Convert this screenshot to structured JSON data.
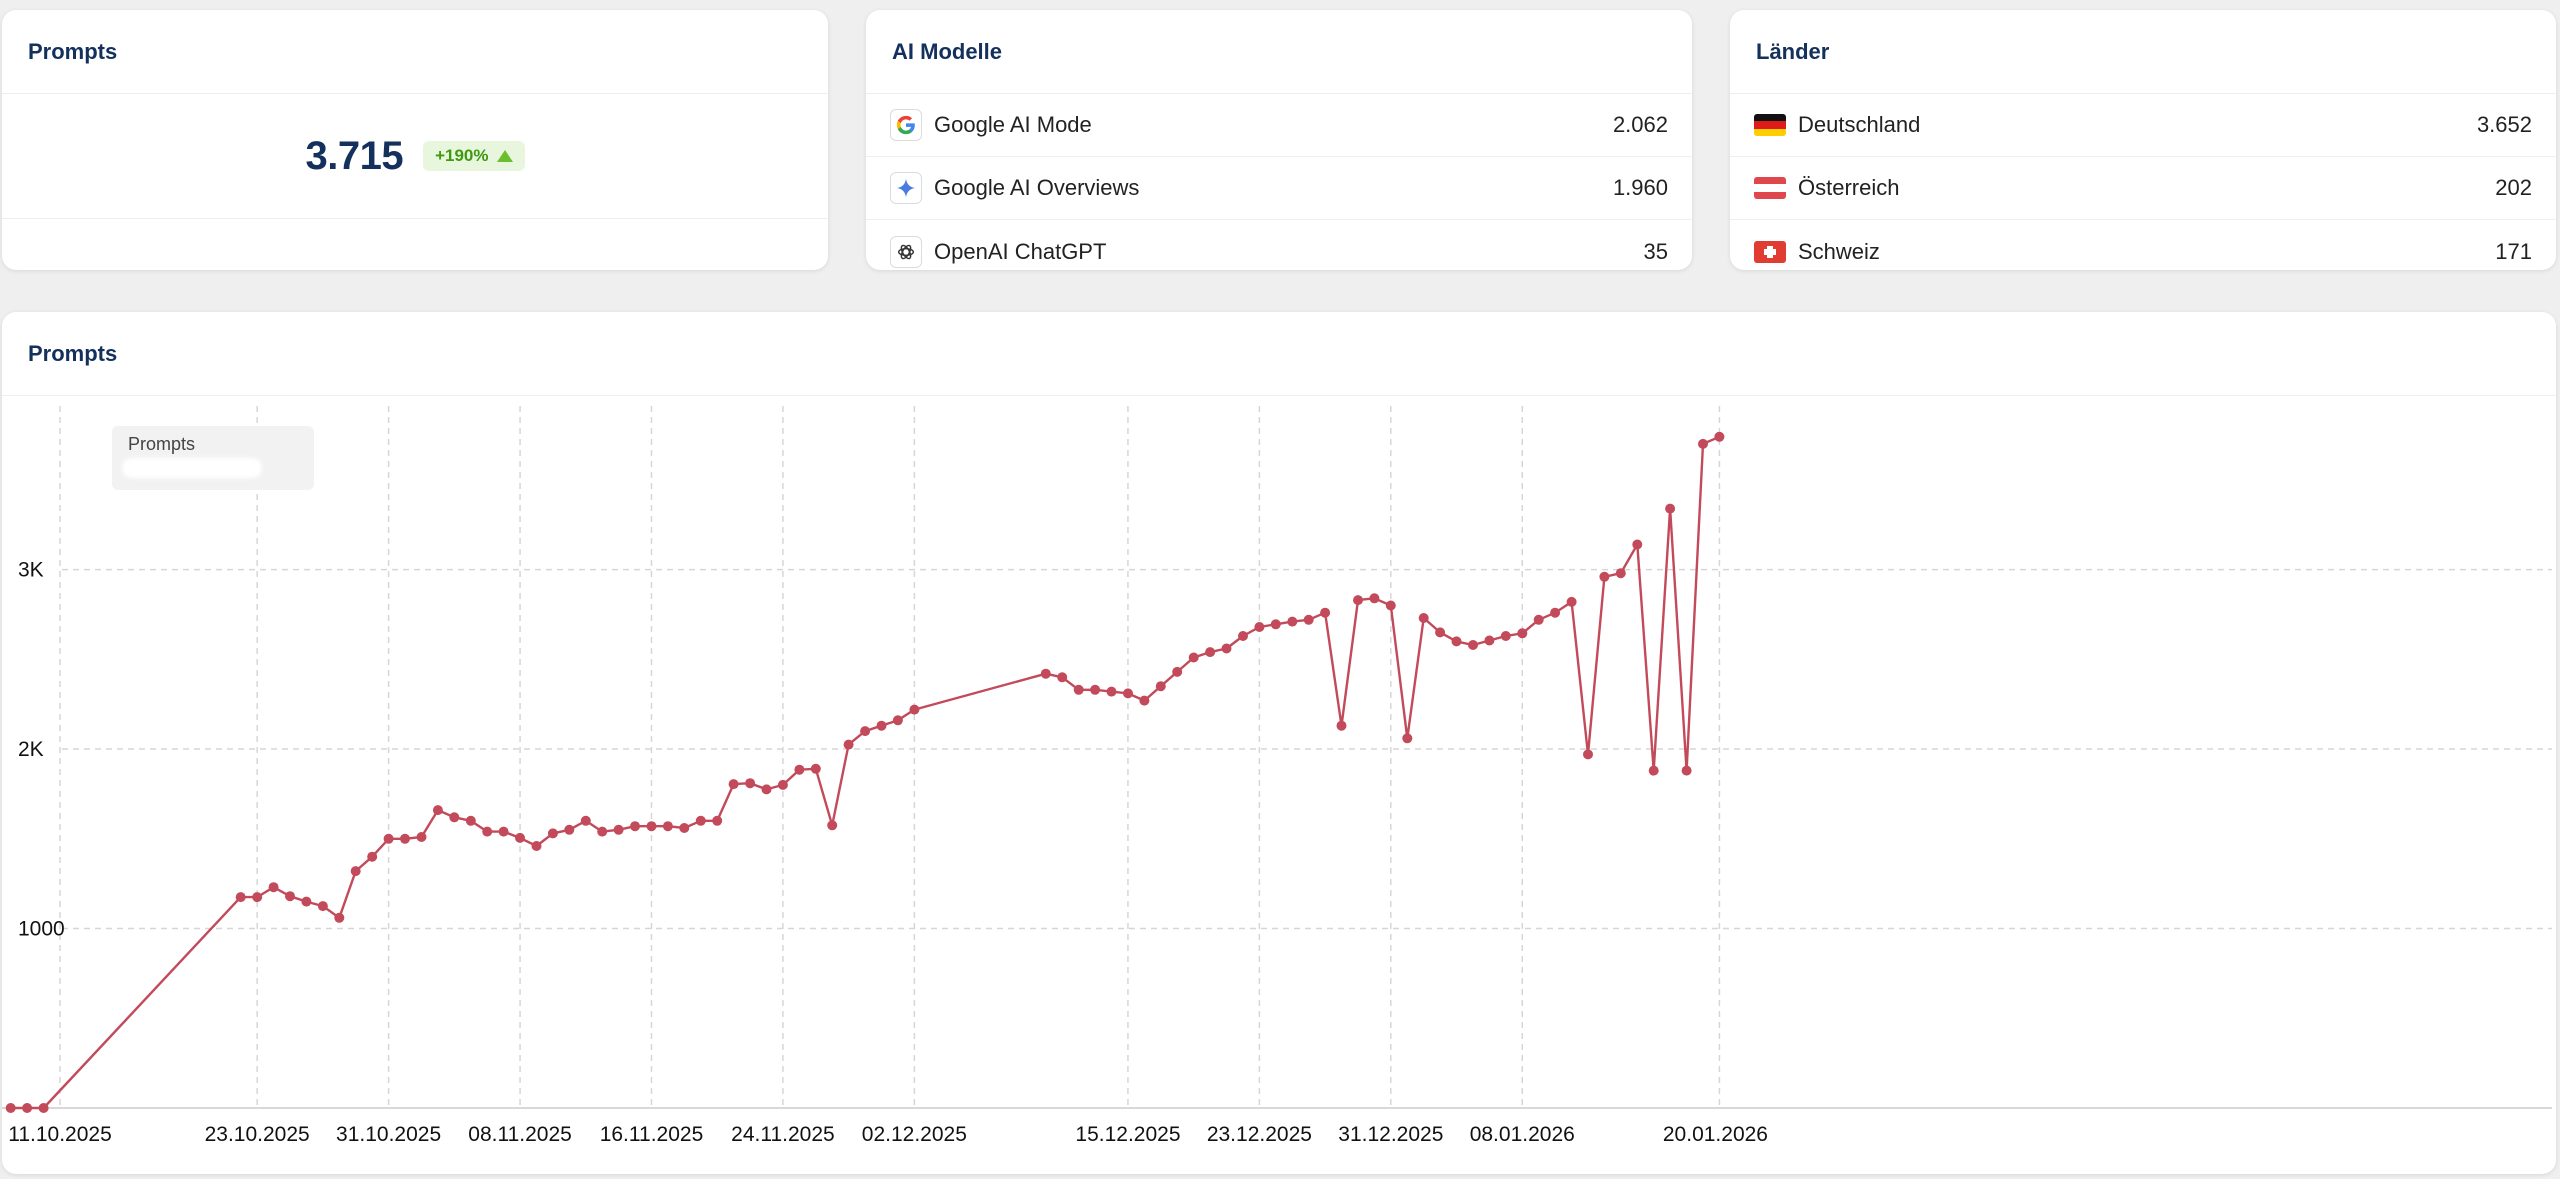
{
  "prompts_card": {
    "title": "Prompts",
    "value": "3.715",
    "change": "+190%"
  },
  "models_card": {
    "title": "AI Modelle",
    "items": [
      {
        "label": "Google AI Mode",
        "value": "2.062",
        "icon": "google-g-icon"
      },
      {
        "label": "Google AI Overviews",
        "value": "1.960",
        "icon": "gemini-sparkle-icon"
      },
      {
        "label": "OpenAI ChatGPT",
        "value": "35",
        "icon": "openai-icon"
      }
    ]
  },
  "countries_card": {
    "title": "Länder",
    "items": [
      {
        "label": "Deutschland",
        "value": "3.652",
        "icon": "germany-flag-icon"
      },
      {
        "label": "Österreich",
        "value": "202",
        "icon": "austria-flag-icon"
      },
      {
        "label": "Schweiz",
        "value": "171",
        "icon": "switzerland-flag-icon"
      }
    ]
  },
  "chart_card": {
    "title": "Prompts",
    "legend_label": "Prompts"
  },
  "colors": {
    "line": "#c24a5a",
    "title": "#14305c",
    "badge_text": "#3f9a12",
    "badge_bg": "#e7f6dc"
  },
  "chart_data": {
    "type": "line",
    "series": [
      {
        "name": "Prompts",
        "values": [
          0,
          0,
          0,
          1175,
          1175,
          1230,
          1180,
          1150,
          1125,
          1060,
          1320,
          1400,
          1500,
          1500,
          1510,
          1660,
          1620,
          1600,
          1540,
          1540,
          1505,
          1460,
          1530,
          1550,
          1600,
          1540,
          1550,
          1570,
          1570,
          1570,
          1560,
          1600,
          1600,
          1805,
          1810,
          1775,
          1800,
          1885,
          1890,
          1575,
          2025,
          2100,
          2130,
          2160,
          2220,
          2420,
          2400,
          2330,
          2330,
          2320,
          2310,
          2270,
          2350,
          2430,
          2510,
          2540,
          2560,
          2630,
          2680,
          2695,
          2710,
          2720,
          2760,
          2130,
          2830,
          2840,
          2800,
          2060,
          2730,
          2650,
          2600,
          2580,
          2605,
          2630,
          2645,
          2720,
          2760,
          2820,
          1970,
          2960,
          2980,
          3140,
          1880,
          3340,
          1880,
          3700,
          3740
        ]
      }
    ],
    "x_day_offsets": [
      -3,
      -2,
      -1,
      11,
      12,
      13,
      14,
      15,
      16,
      17,
      18,
      19,
      20,
      21,
      22,
      23,
      24,
      25,
      26,
      27,
      28,
      29,
      30,
      31,
      32,
      33,
      34,
      35,
      36,
      37,
      38,
      39,
      40,
      41,
      42,
      43,
      44,
      45,
      46,
      47,
      48,
      49,
      50,
      51,
      52,
      60,
      61,
      62,
      63,
      64,
      65,
      66,
      67,
      68,
      69,
      70,
      71,
      72,
      73,
      74,
      75,
      76,
      77,
      78,
      79,
      80,
      81,
      82,
      83,
      84,
      85,
      86,
      87,
      88,
      89,
      90,
      91,
      92,
      93,
      94,
      95,
      96,
      97,
      98,
      99,
      100,
      101
    ],
    "x_start_date": "11.10.2025",
    "x_ticks": [
      "11.10.2025",
      "23.10.2025",
      "31.10.2025",
      "08.11.2025",
      "16.11.2025",
      "24.11.2025",
      "02.12.2025",
      "15.12.2025",
      "23.12.2025",
      "31.12.2025",
      "08.01.2026",
      "20.01.2026"
    ],
    "y_ticks": [
      {
        "value": 1000,
        "label": "1000"
      },
      {
        "value": 2000,
        "label": "2K"
      },
      {
        "value": 3000,
        "label": "3K"
      }
    ],
    "ylim": [
      0,
      3800
    ],
    "grid": true,
    "legend": "top-left"
  }
}
